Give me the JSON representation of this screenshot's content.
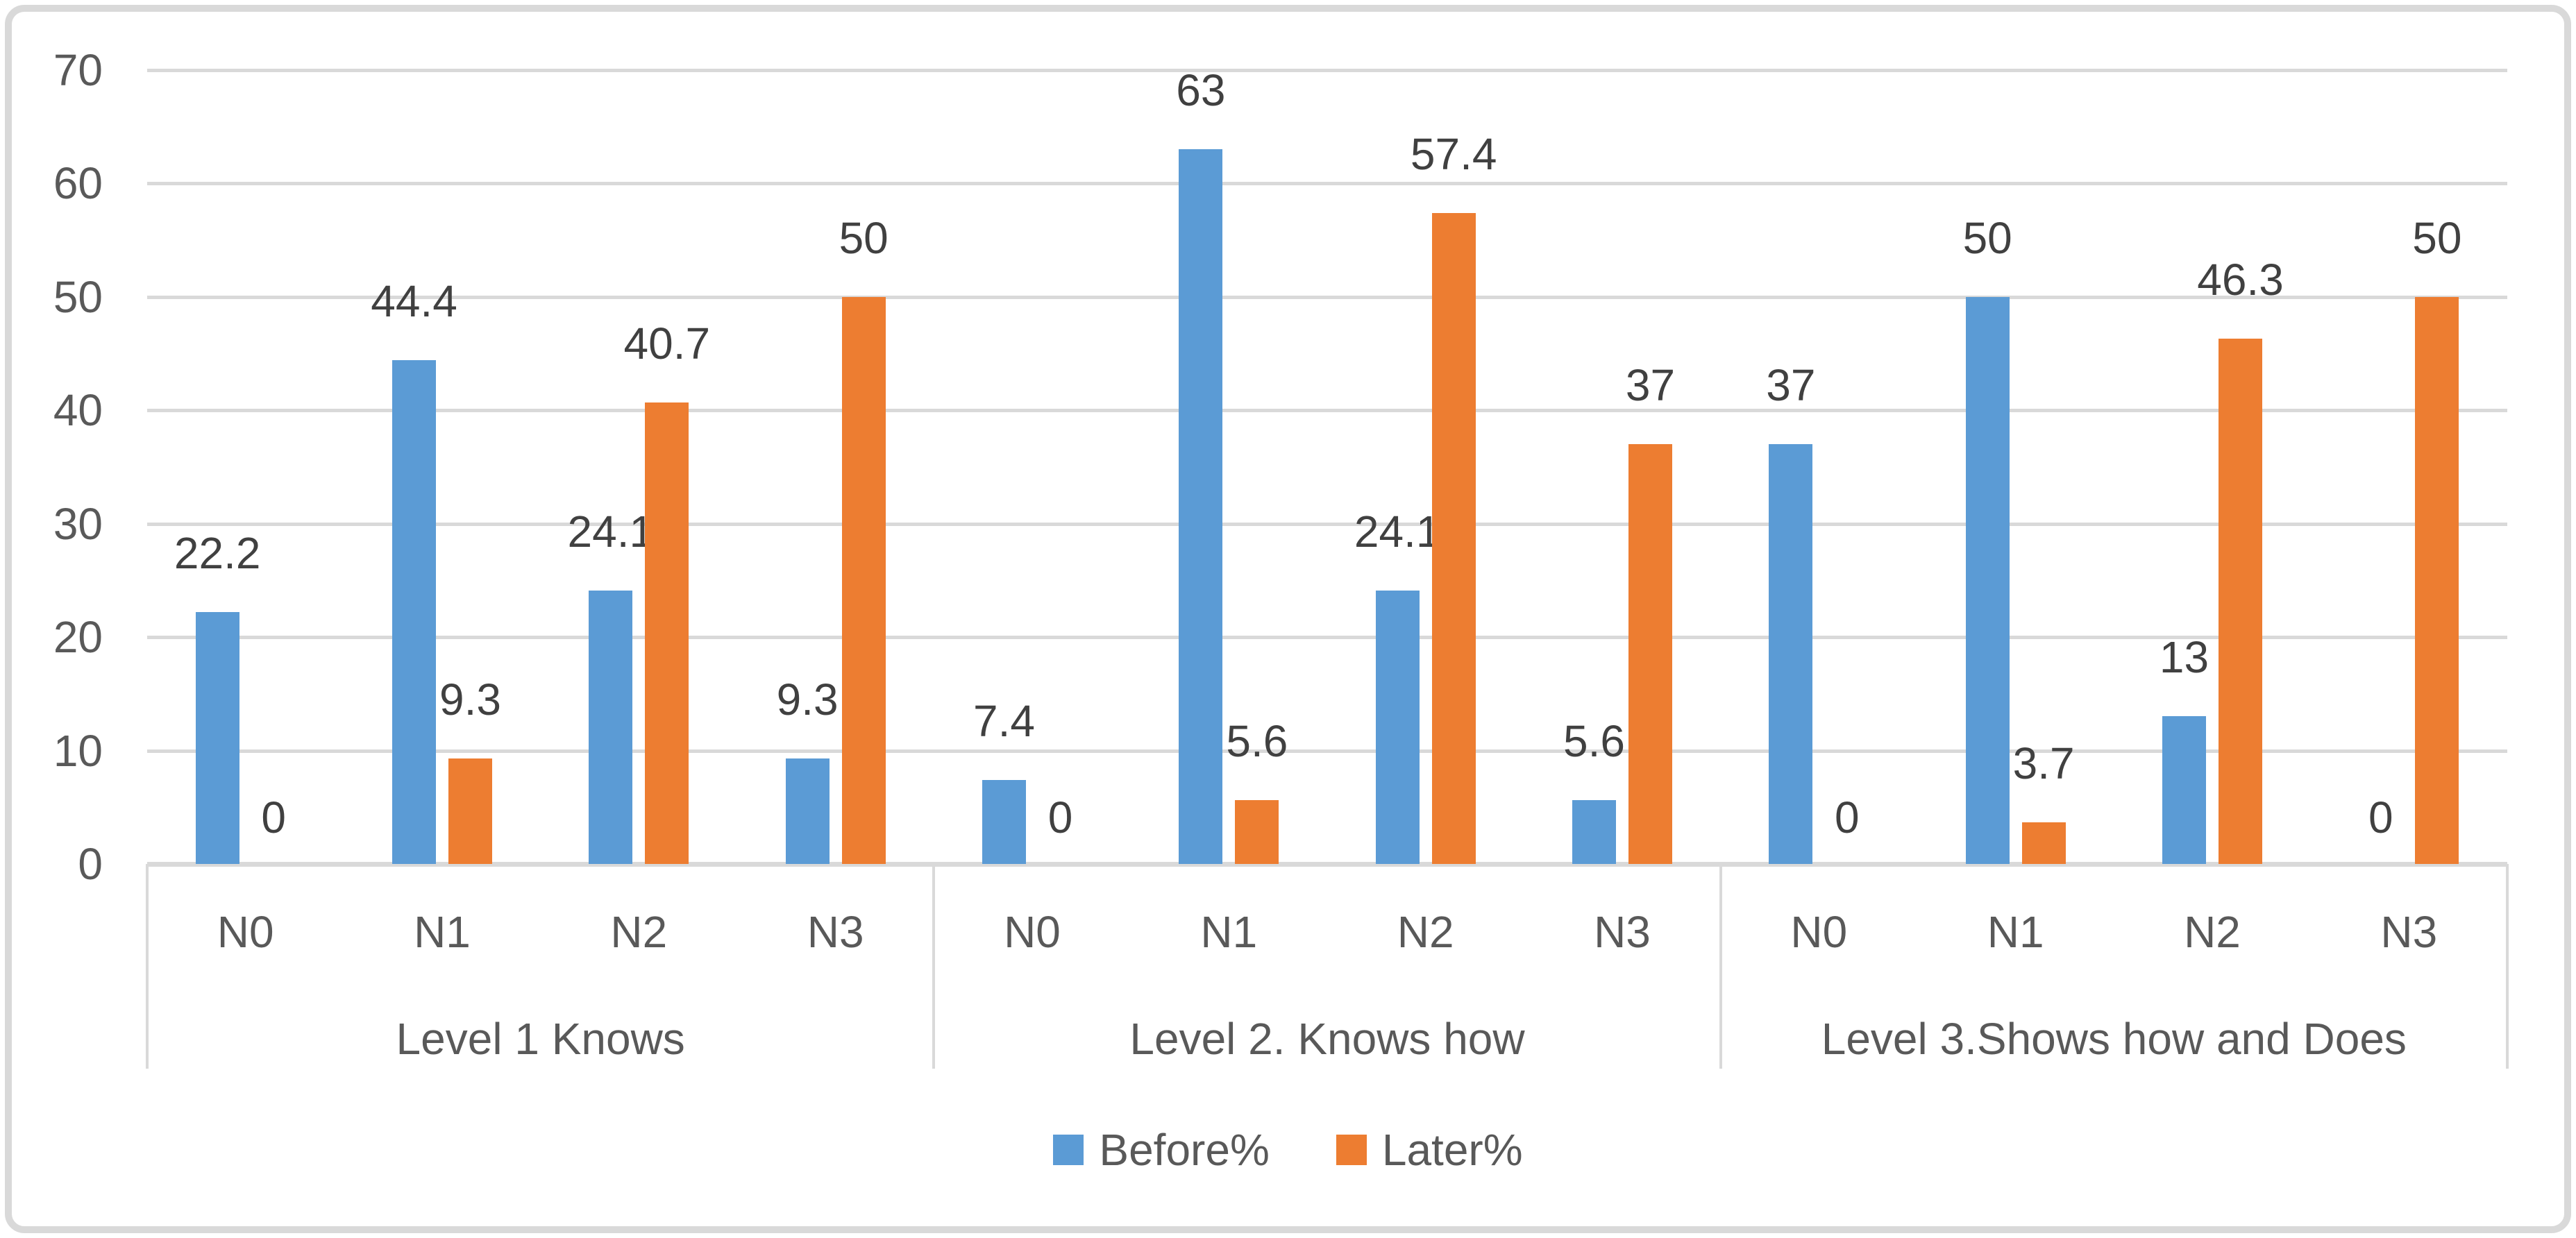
{
  "chart_data": {
    "type": "bar",
    "title": "",
    "y_axis": {
      "min": 0,
      "max": 70,
      "step": 10,
      "tick_labels": [
        "0",
        "10",
        "20",
        "30",
        "40",
        "50",
        "60",
        "70"
      ],
      "gridlines": true
    },
    "group_labels": [
      "Level 1 Knows",
      "Level 2. Knows how",
      "Level 3.Shows how and Does"
    ],
    "categories": [
      "N0",
      "N1",
      "N2",
      "N3"
    ],
    "series": [
      {
        "name": "Before%",
        "color": "#5B9BD5",
        "values": [
          [
            22.2,
            44.4,
            24.1,
            9.3
          ],
          [
            7.4,
            63,
            24.1,
            5.6
          ],
          [
            37,
            50,
            13,
            0
          ]
        ]
      },
      {
        "name": "Later%",
        "color": "#ED7D31",
        "values": [
          [
            0,
            9.3,
            40.7,
            50
          ],
          [
            0,
            5.6,
            57.4,
            37
          ],
          [
            0,
            3.7,
            46.3,
            50
          ]
        ]
      }
    ],
    "legend_position": "bottom"
  },
  "colors": {
    "gridline": "#D9D9D9",
    "axis_text": "#595959",
    "data_label_text": "#404040",
    "frame_border": "#D9D9D9",
    "background": "#FFFFFF"
  }
}
